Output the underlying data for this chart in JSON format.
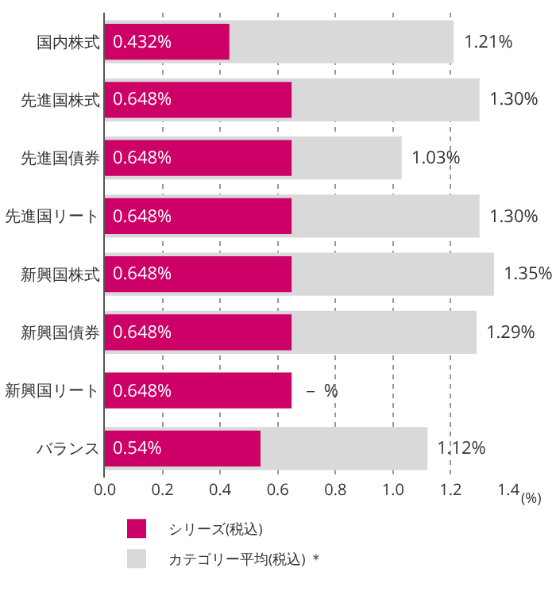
{
  "chart_data": {
    "type": "bar",
    "orientation": "horizontal",
    "categories": [
      "国内株式",
      "先進国株式",
      "先進国債券",
      "先進国リート",
      "新興国株式",
      "新興国債券",
      "新興国リート",
      "バランス"
    ],
    "series": [
      {
        "name": "シリーズ(税込)",
        "color": "#cc0066",
        "values": [
          0.432,
          0.648,
          0.648,
          0.648,
          0.648,
          0.648,
          0.648,
          0.54
        ],
        "value_labels": [
          "0.432%",
          "0.648%",
          "0.648%",
          "0.648%",
          "0.648%",
          "0.648%",
          "0.648%",
          "0.54%"
        ]
      },
      {
        "name": "カテゴリー平均(税込) ＊",
        "color": "#d9d9d9",
        "values": [
          1.21,
          1.3,
          1.03,
          1.3,
          1.35,
          1.29,
          null,
          1.12
        ],
        "value_labels": [
          "1.21%",
          "1.30%",
          "1.03%",
          "1.30%",
          "1.35%",
          "1.29%",
          "－ %",
          "1.12%"
        ]
      }
    ],
    "xlabel": "(%)",
    "xlim": [
      0,
      1.4
    ],
    "xticks": [
      {
        "value": 0,
        "label": "0.0"
      },
      {
        "value": 0.2,
        "label": "0.2"
      },
      {
        "value": 0.4,
        "label": "0.4"
      },
      {
        "value": 0.6,
        "label": "0.6"
      },
      {
        "value": 0.8,
        "label": "0.8"
      },
      {
        "value": 1,
        "label": "1.0"
      },
      {
        "value": 1.2,
        "label": "1.2"
      },
      {
        "value": 1.4,
        "label": "1.4"
      }
    ],
    "grid": "x",
    "legend": "bottom"
  }
}
